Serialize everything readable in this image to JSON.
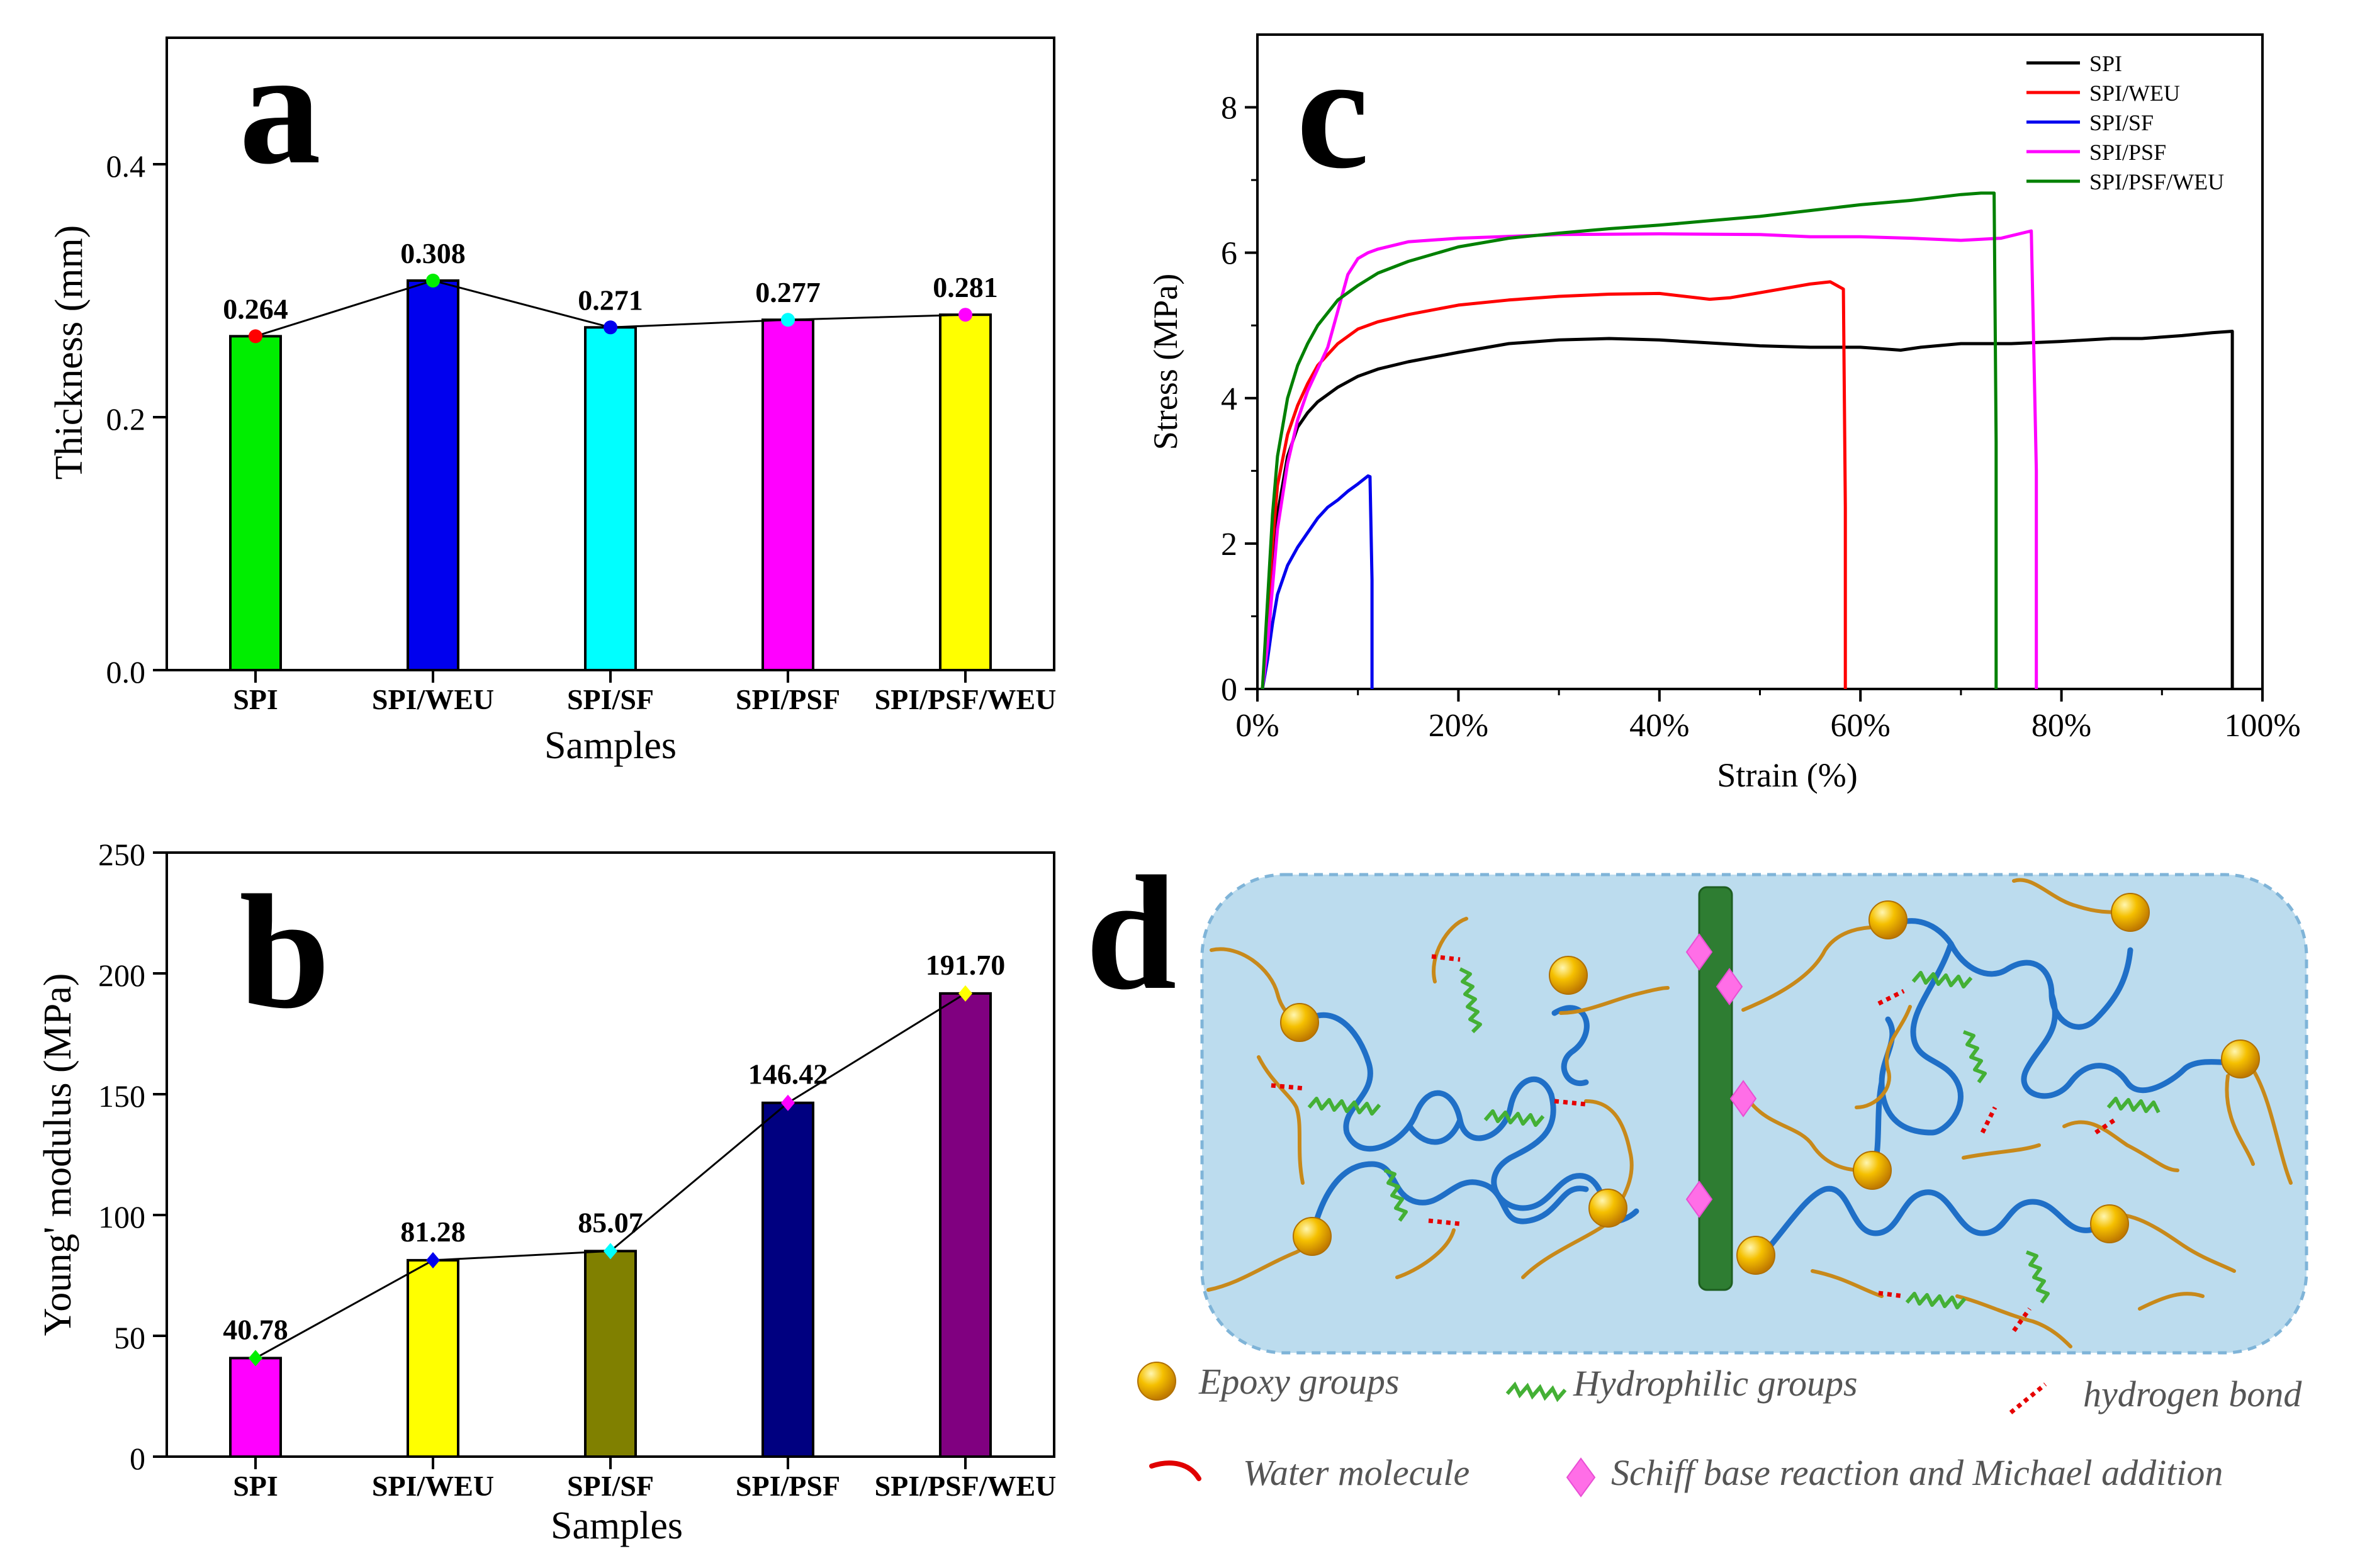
{
  "chart_data": [
    {
      "id": "a",
      "type": "bar",
      "panel_label": "a",
      "title": "",
      "xlabel": "Samples",
      "ylabel": "Thickness (mm)",
      "ylim": [
        0,
        0.5
      ],
      "yticks": [
        0.0,
        0.2,
        0.4
      ],
      "ytick_labels": [
        "0.0",
        "0.2",
        "0.4"
      ],
      "categories": [
        "SPI",
        "SPI/WEU",
        "SPI/SF",
        "SPI/PSF",
        "SPI/PSF/WEU"
      ],
      "values": [
        0.264,
        0.308,
        0.271,
        0.277,
        0.281
      ],
      "value_labels": [
        "0.264",
        "0.308",
        "0.271",
        "0.277",
        "0.281"
      ],
      "bar_colors": [
        "#00ee00",
        "#0000ee",
        "#00ffff",
        "#ff00ff",
        "#ffff00"
      ],
      "marker_colors": [
        "#ff0000",
        "#00ee00",
        "#0000ee",
        "#00ffff",
        "#ff00ff"
      ],
      "marker": "circle",
      "connecting_line": true
    },
    {
      "id": "b",
      "type": "bar",
      "panel_label": "b",
      "title": "",
      "xlabel": "Samples",
      "ylabel": "Young' modulus (MPa)",
      "ylim": [
        0,
        250
      ],
      "yticks": [
        0,
        50,
        100,
        150,
        200,
        250
      ],
      "ytick_labels": [
        "0",
        "50",
        "100",
        "150",
        "200",
        "250"
      ],
      "categories": [
        "SPI",
        "SPI/WEU",
        "SPI/SF",
        "SPI/PSF",
        "SPI/PSF/WEU"
      ],
      "values": [
        40.78,
        81.28,
        85.07,
        146.42,
        191.7
      ],
      "value_labels": [
        "40.78",
        "81.28",
        "85.07",
        "146.42",
        "191.70"
      ],
      "bar_colors": [
        "#ff00ff",
        "#ffff00",
        "#808000",
        "#000080",
        "#800080"
      ],
      "marker_colors": [
        "#00ee00",
        "#0000ee",
        "#00ffff",
        "#ff00ff",
        "#ffff00"
      ],
      "marker": "diamond",
      "connecting_line": true
    },
    {
      "id": "c",
      "type": "line",
      "panel_label": "c",
      "title": "",
      "xlabel": "Strain (%)",
      "ylabel": "Stress (MPa)",
      "xlim": [
        0,
        100
      ],
      "ylim": [
        0,
        9
      ],
      "xticks": [
        0,
        20,
        40,
        60,
        80,
        100
      ],
      "xtick_labels": [
        "0%",
        "20%",
        "40%",
        "60%",
        "80%",
        "100%"
      ],
      "yticks": [
        0,
        2,
        4,
        6,
        8
      ],
      "ytick_labels": [
        "0",
        "2",
        "4",
        "6",
        "8"
      ],
      "legend_position": "top-right",
      "series": [
        {
          "name": "SPI",
          "color": "#000000",
          "x": [
            0.5,
            1,
            1.5,
            2,
            3,
            4,
            5,
            6,
            8,
            10,
            12,
            15,
            20,
            25,
            30,
            35,
            40,
            45,
            50,
            55,
            60,
            64,
            66,
            70,
            75,
            80,
            85,
            88,
            92,
            95,
            97,
            97,
            97
          ],
          "y": [
            0,
            0.5,
            1.5,
            2.4,
            3.2,
            3.6,
            3.8,
            3.95,
            4.15,
            4.3,
            4.4,
            4.5,
            4.63,
            4.75,
            4.8,
            4.82,
            4.8,
            4.76,
            4.72,
            4.7,
            4.7,
            4.66,
            4.7,
            4.75,
            4.75,
            4.78,
            4.82,
            4.82,
            4.86,
            4.9,
            4.92,
            2.3,
            0
          ]
        },
        {
          "name": "SPI/WEU",
          "color": "#ff0000",
          "x": [
            0.5,
            1,
            1.5,
            2,
            3,
            4,
            5,
            6,
            8,
            10,
            12,
            15,
            20,
            25,
            30,
            35,
            40,
            45,
            47,
            50,
            55,
            57,
            58.3,
            58.5,
            58.5
          ],
          "y": [
            0,
            1,
            2,
            2.8,
            3.5,
            3.9,
            4.2,
            4.45,
            4.75,
            4.95,
            5.05,
            5.15,
            5.28,
            5.35,
            5.4,
            5.43,
            5.44,
            5.36,
            5.38,
            5.45,
            5.57,
            5.6,
            5.5,
            2.5,
            0
          ]
        },
        {
          "name": "SPI/SF",
          "color": "#0000ee",
          "x": [
            0.5,
            1,
            1.5,
            2,
            3,
            4,
            5,
            6,
            7,
            8,
            9,
            10,
            11,
            11.2,
            11.4,
            11.4
          ],
          "y": [
            0,
            0.4,
            0.9,
            1.3,
            1.7,
            1.95,
            2.15,
            2.35,
            2.5,
            2.6,
            2.72,
            2.82,
            2.93,
            2.92,
            1.5,
            0
          ]
        },
        {
          "name": "SPI/PSF",
          "color": "#ff00ff",
          "x": [
            0.5,
            1,
            1.5,
            2,
            3,
            4,
            5,
            6,
            7,
            8,
            9,
            10,
            11,
            12,
            15,
            20,
            30,
            40,
            50,
            55,
            60,
            65,
            70,
            74,
            77,
            77.5,
            77.5
          ],
          "y": [
            0,
            0.6,
            1.4,
            2.2,
            3.1,
            3.7,
            4.1,
            4.4,
            4.7,
            5.2,
            5.7,
            5.92,
            6.0,
            6.05,
            6.15,
            6.2,
            6.25,
            6.26,
            6.25,
            6.22,
            6.22,
            6.2,
            6.17,
            6.2,
            6.3,
            3,
            0
          ]
        },
        {
          "name": "SPI/PSF/WEU",
          "color": "#008000",
          "x": [
            0.5,
            1,
            1.5,
            2,
            3,
            4,
            5,
            6,
            8,
            10,
            12,
            15,
            20,
            25,
            30,
            35,
            40,
            45,
            50,
            55,
            60,
            65,
            70,
            72,
            73.3,
            73.5,
            73.5
          ],
          "y": [
            0,
            1.2,
            2.4,
            3.2,
            4.0,
            4.45,
            4.75,
            5.0,
            5.35,
            5.55,
            5.72,
            5.88,
            6.08,
            6.2,
            6.27,
            6.33,
            6.38,
            6.44,
            6.5,
            6.58,
            6.66,
            6.72,
            6.8,
            6.82,
            6.82,
            3.4,
            0
          ]
        }
      ]
    }
  ],
  "diagram": {
    "panel_label": "d",
    "legend": {
      "epoxy": "Epoxy groups",
      "hydrophilic": "Hydrophilic groups",
      "hbond": "hydrogen bond",
      "water": "Water molecule",
      "schiff": "Schiff  base reaction and Michael addition"
    },
    "colors": {
      "background": "#bcdcee",
      "border": "#7fb4d8",
      "chain": "#1f6fc7",
      "side_chain": "#c8891a",
      "hydrophilic": "#44b035",
      "hbond": "#e60000",
      "backbone": "#2e7d32",
      "diamond": "#ff6ee7",
      "epoxy": "#f2b100",
      "water": "#e00000"
    }
  }
}
